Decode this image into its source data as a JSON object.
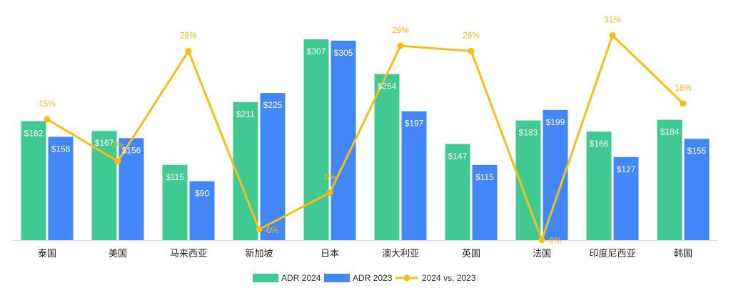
{
  "chart_data": {
    "type": "bar",
    "categories": [
      "泰国",
      "美国",
      "马来西亚",
      "新加坡",
      "日本",
      "澳大利亚",
      "英国",
      "法国",
      "印度尼西亚",
      "韩国"
    ],
    "series": [
      {
        "name": "ADR 2024",
        "kind": "bar",
        "values": [
          182,
          167,
          115,
          211,
          307,
          254,
          147,
          183,
          166,
          184
        ],
        "labels": [
          "$182",
          "$167",
          "$115",
          "$211",
          "$307",
          "$254",
          "$147",
          "$183",
          "$166",
          "$184"
        ],
        "color": "#41c993"
      },
      {
        "name": "ADR 2023",
        "kind": "bar",
        "values": [
          158,
          156,
          90,
          225,
          305,
          197,
          115,
          199,
          127,
          155
        ],
        "labels": [
          "$158",
          "$156",
          "$90",
          "$225",
          "$305",
          "$197",
          "$115",
          "$199",
          "$127",
          "$155"
        ],
        "color": "#4287f5"
      },
      {
        "name": "2024 vs. 2023",
        "kind": "line",
        "values": [
          15,
          7,
          28,
          -6,
          1,
          29,
          28,
          -8,
          31,
          18
        ],
        "labels": [
          "15%",
          "7%",
          "28%",
          "-6%",
          "1%",
          "29%",
          "28%",
          "-8%",
          "31%",
          "18%"
        ],
        "color": "#f5bd16"
      }
    ],
    "legend_position": "bottom",
    "grid": false
  }
}
